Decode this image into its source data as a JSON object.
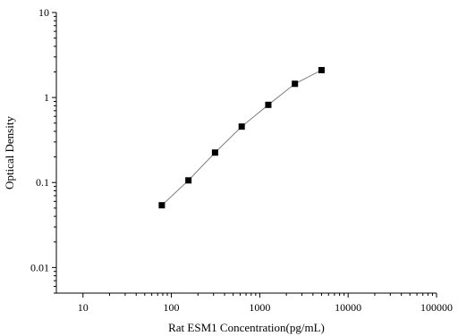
{
  "chart_data": {
    "type": "scatter",
    "title": "",
    "xlabel": "Rat ESM1 Concentration(pg/mL)",
    "ylabel": "Optical Density",
    "x_scale": "log",
    "y_scale": "log",
    "xlim": [
      5,
      100000
    ],
    "ylim": [
      0.005,
      10
    ],
    "x_ticks": [
      10,
      100,
      1000,
      10000,
      100000
    ],
    "x_tick_labels": [
      "10",
      "100",
      "1000",
      "10000",
      "100000"
    ],
    "y_ticks": [
      0.01,
      0.1,
      1,
      10
    ],
    "y_tick_labels": [
      "0.01",
      "0.1",
      "1",
      "10"
    ],
    "grid": false,
    "legend": "none",
    "colors": {
      "marker": "#000000",
      "curve": "#7f7f7f",
      "axis": "#000000"
    },
    "series": [
      {
        "x": [
          78,
          156,
          312,
          625,
          1250,
          2500,
          5000
        ],
        "y": [
          0.054,
          0.106,
          0.225,
          0.455,
          0.82,
          1.45,
          2.1
        ],
        "marker": "square",
        "fit_curve": true
      }
    ]
  }
}
